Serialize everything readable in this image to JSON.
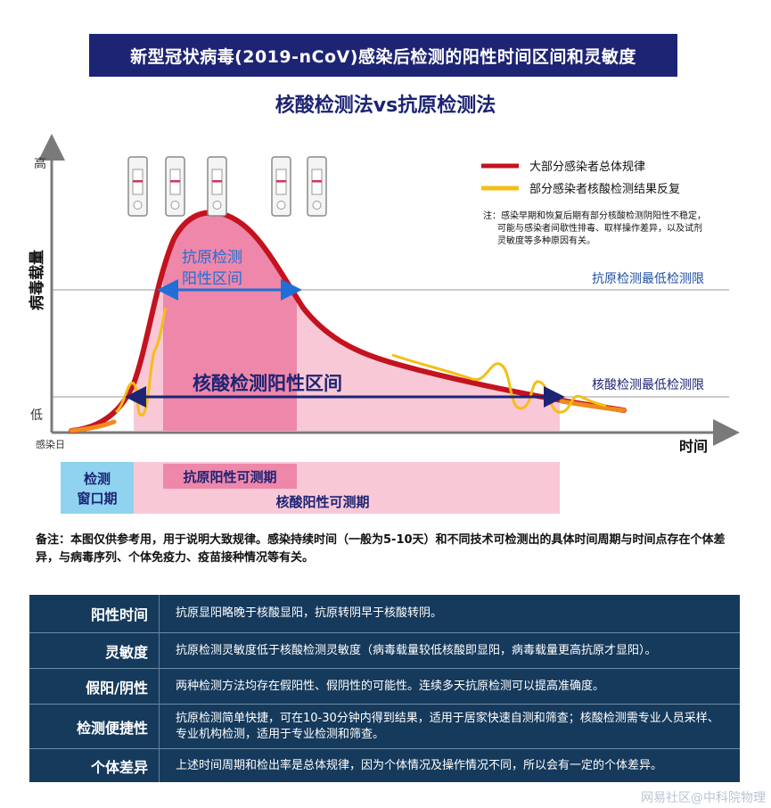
{
  "header": {
    "banner": "新型冠状病毒(2019-nCoV)感染后检测的阳性时间区间和灵敏度",
    "subtitle": "核酸检测法vs抗原检测法"
  },
  "chart": {
    "y_axis_title": "病毒载量",
    "y_high": "高",
    "y_low": "低",
    "x_axis_title": "时间",
    "x_origin": "感染日",
    "legend": [
      {
        "label": "大部分感染者总体规律",
        "color": "#c4121f"
      },
      {
        "label": "部分感染者核酸检测结果反复",
        "color": "#f5be16"
      }
    ],
    "footnote": [
      "注：感染早期和恢复后期有部分核酸检测阴阳性不稳定，",
      "可能与感染者间歇性排毒、取样操作差异，以及试剂",
      "灵敏度等多种原因有关。"
    ],
    "antigen_limit": "抗原检测最低检测限",
    "nucleic_limit": "核酸检测最低检测限",
    "antigen_interval": [
      "抗原检测",
      "阳性区间"
    ],
    "nucleic_interval": "核酸检测阳性区间",
    "window_period": [
      "检测",
      "窗口期"
    ],
    "antigen_detectable": "抗原阳性可测期",
    "nucleic_detectable": "核酸阳性可测期",
    "test_strip_count": 5,
    "colors": {
      "nucleic_zone": "#f8c8d6",
      "antigen_zone": "#ee87a9",
      "window": "#8fd3f0",
      "arrow_blue": "#1f6fd6",
      "arrow_navy": "#1d2474",
      "limit_text": "#1f4ea3"
    }
  },
  "remark": "备注：本图仅供参考用，用于说明大致规律。感染持续时间（一般为5-10天）和不同技术可检测出的具体时间周期与时间点存在个体差异，与病毒序列、个体免疫力、疫苗接种情况等有关。",
  "table": [
    {
      "label": "阳性时间",
      "text": "抗原显阳略晚于核酸显阳，抗原转阴早于核酸转阴。"
    },
    {
      "label": "灵敏度",
      "text": "抗原检测灵敏度低于核酸检测灵敏度（病毒载量较低核酸即显阳，病毒载量更高抗原才显阳）。"
    },
    {
      "label": "假阳/阴性",
      "text": "两种检测方法均存在假阳性、假阴性的可能性。连续多天抗原检测可以提高准确度。"
    },
    {
      "label": "检测便捷性",
      "text": "抗原检测简单快捷，可在10-30分钟内得到结果，适用于居家快速自测和筛查；核酸检测需专业人员采样、专业机构检测，适用于专业检测和筛查。"
    },
    {
      "label": "个体差异",
      "text": "上述时间周期和检出率是总体规律，因为个体情况及操作情况不同，所以会有一定的个体差异。"
    }
  ],
  "watermark": "网易社区@中科院物理"
}
